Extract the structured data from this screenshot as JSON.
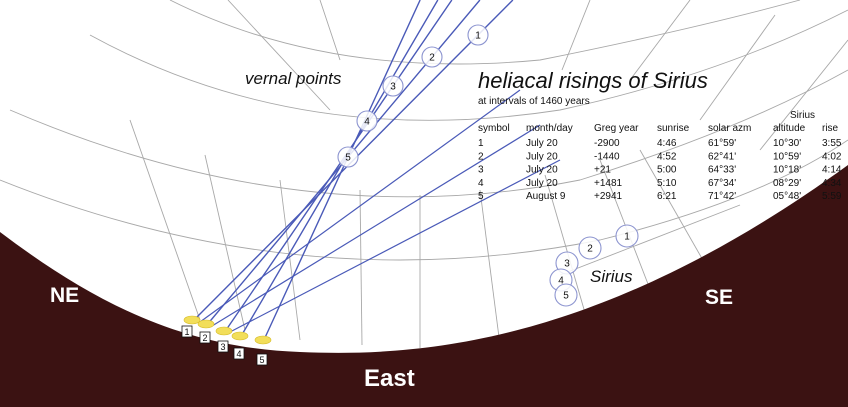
{
  "title": "heliacal risings of Sirius",
  "subtitle": "at intervals of 1460 years",
  "labels": {
    "vernal_points": "vernal points",
    "sirius": "Sirius",
    "northeast": "NE",
    "southeast": "SE",
    "east": "East"
  },
  "table": {
    "group_header": "Sirius",
    "columns": [
      "symbol",
      "month/day",
      "Greg year",
      "sunrise",
      "solar azm",
      "altitude",
      "rise"
    ],
    "rows": [
      [
        "1",
        "July 20",
        "-2900",
        "4:46",
        "61°59'",
        "10°30'",
        "3:55"
      ],
      [
        "2",
        "July 20",
        "-1440",
        "4:52",
        "62°41'",
        "10°59'",
        "4:02"
      ],
      [
        "3",
        "July 20",
        "+21",
        "5:00",
        "64°33'",
        "10°18'",
        "4:14"
      ],
      [
        "4",
        "July 20",
        "+1481",
        "5:10",
        "67°34'",
        "08°29'",
        "4:34"
      ],
      [
        "5",
        "August 9",
        "+2941",
        "6:21",
        "71°42'",
        "05°48'",
        "5:59"
      ]
    ]
  },
  "markers": {
    "vernal": [
      "1",
      "2",
      "3",
      "4",
      "5"
    ],
    "sirius": [
      "1",
      "2",
      "3",
      "4",
      "5"
    ],
    "sun": [
      "1",
      "2",
      "3",
      "4",
      "5"
    ]
  },
  "colors": {
    "ground": "#3b1212",
    "lines": "#4a5ab8",
    "grid": "#a8a8a8",
    "sun": "#f2de5a",
    "marker_ring": "#8d95d0"
  }
}
